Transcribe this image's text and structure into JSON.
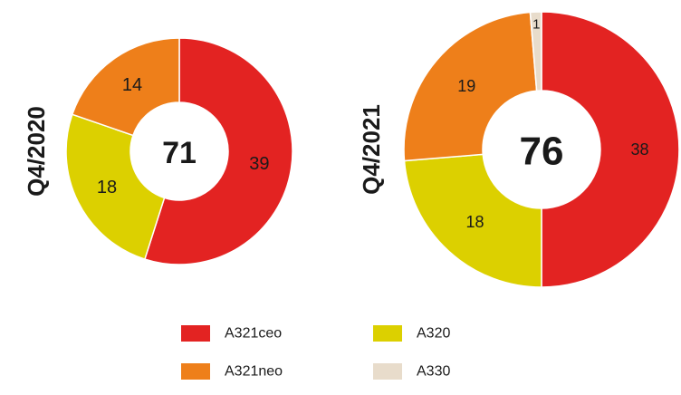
{
  "chart_data": [
    {
      "type": "donut",
      "title": "Q4/2020",
      "total": 71,
      "categories": [
        "A321ceo",
        "A320",
        "A321neo"
      ],
      "values": [
        39,
        18,
        14
      ],
      "colors": [
        "#e32322",
        "#dcd000",
        "#ee7f1a"
      ]
    },
    {
      "type": "donut",
      "title": "Q4/2021",
      "total": 76,
      "categories": [
        "A321ceo",
        "A320",
        "A321neo",
        "A330"
      ],
      "values": [
        38,
        18,
        19,
        1
      ],
      "colors": [
        "#e32322",
        "#dcd000",
        "#ee7f1a",
        "#e8dccb"
      ]
    }
  ]
}
